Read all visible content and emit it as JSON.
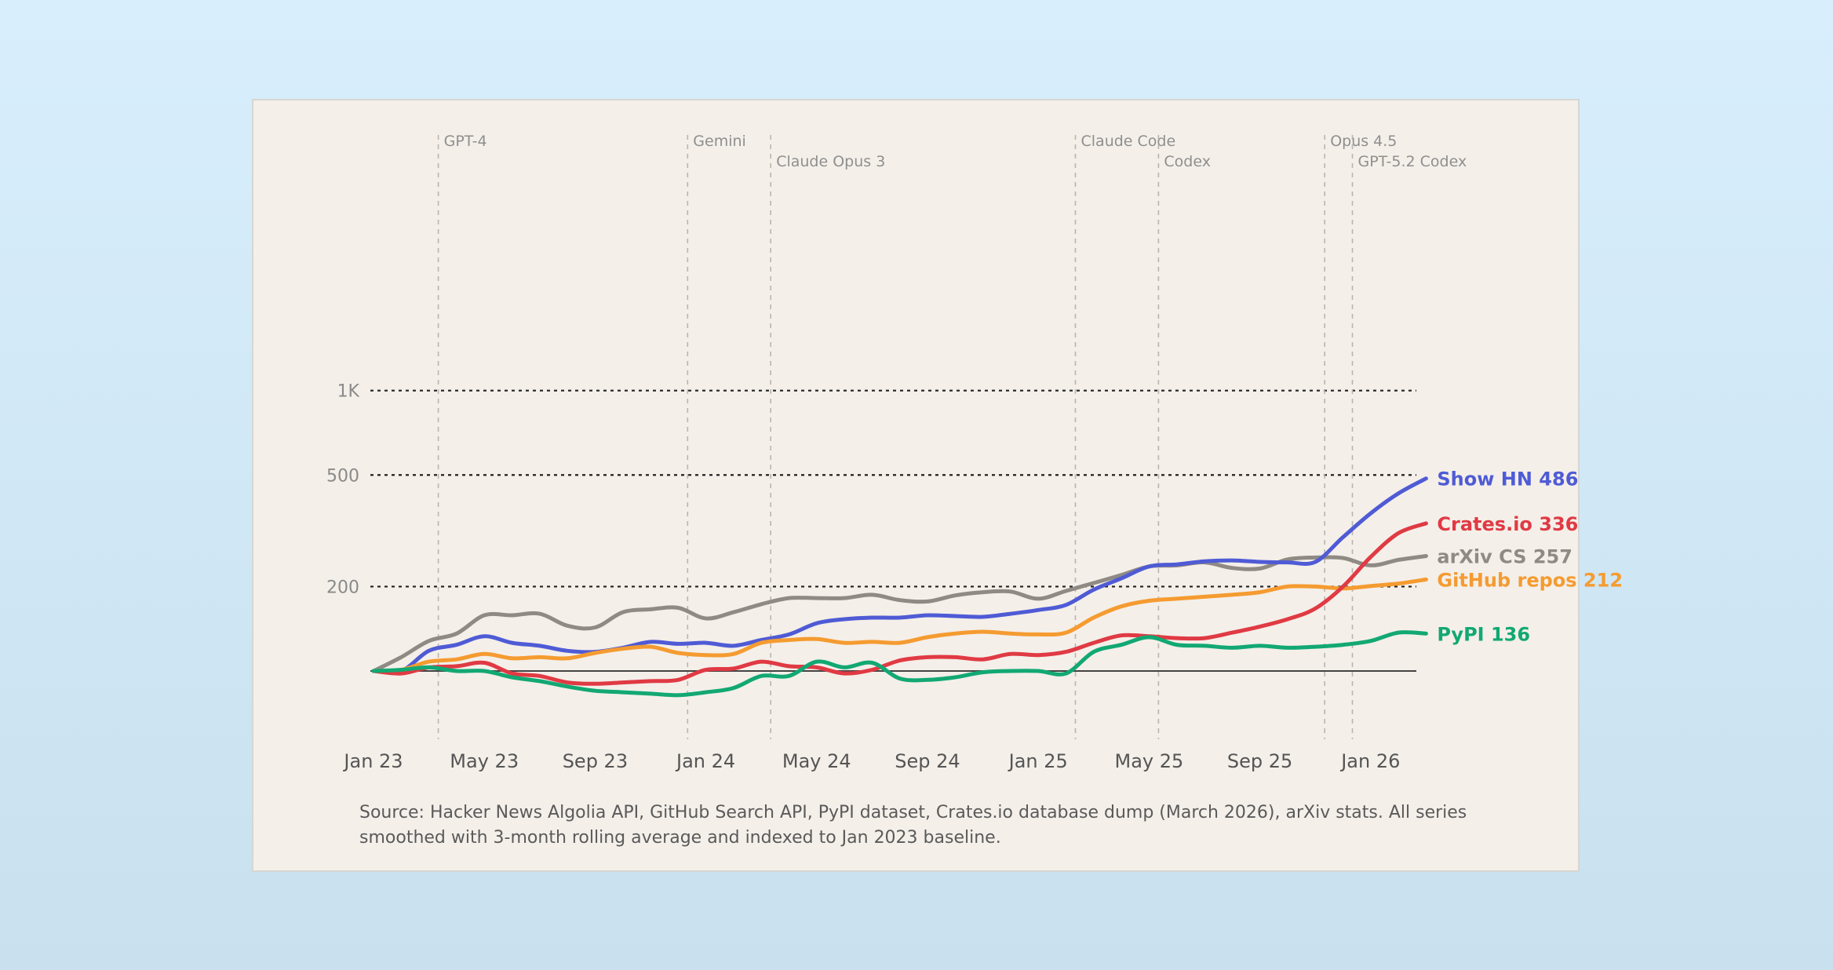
{
  "chart_data": {
    "type": "line",
    "title": "",
    "xlabel": "",
    "ylabel": "",
    "y_ticks": [
      "1K",
      "500",
      "200"
    ],
    "x_ticks": [
      "Jan 23",
      "May 23",
      "Sep 23",
      "Jan 24",
      "May 24",
      "Sep 24",
      "Jan 25",
      "May 25",
      "Sep 25",
      "Jan 26"
    ],
    "x_range": [
      "2023-01",
      "2026-04"
    ],
    "baseline": 100,
    "events": [
      {
        "label": "GPT-4",
        "date": "2023-03"
      },
      {
        "label": "Gemini",
        "date": "2023-12"
      },
      {
        "label": "Claude Opus 3",
        "date": "2024-03"
      },
      {
        "label": "Claude Code",
        "date": "2025-02"
      },
      {
        "label": "Codex",
        "date": "2025-05"
      },
      {
        "label": "Opus 4.5",
        "date": "2025-11"
      },
      {
        "label": "GPT-5.2 Codex",
        "date": "2025-12"
      }
    ],
    "series": [
      {
        "name": "arXiv CS",
        "end_label": "arXiv CS 257",
        "color": "#8f8a84",
        "values": [
          100,
          112,
          128,
          136,
          158,
          158,
          160,
          145,
          143,
          162,
          166,
          168,
          154,
          162,
          173,
          182,
          182,
          182,
          187,
          179,
          177,
          186,
          191,
          192,
          181,
          193,
          206,
          220,
          236,
          238,
          244,
          233,
          232,
          250,
          254,
          253,
          238,
          249,
          257
        ]
      },
      {
        "name": "Show HN",
        "end_label": "Show HN 486",
        "color": "#4f5bd5",
        "values": [
          100,
          100,
          118,
          124,
          133,
          126,
          123,
          118,
          117,
          121,
          127,
          125,
          126,
          123,
          129,
          135,
          148,
          153,
          155,
          155,
          158,
          157,
          156,
          160,
          165,
          172,
          195,
          214,
          236,
          240,
          246,
          248,
          245,
          244,
          245,
          300,
          365,
          430,
          486
        ]
      },
      {
        "name": "GitHub repos",
        "end_label": "GitHub repos 212",
        "color": "#f59b30",
        "values": [
          100,
          101,
          108,
          110,
          115,
          111,
          112,
          111,
          116,
          120,
          122,
          116,
          114,
          115,
          126,
          129,
          130,
          126,
          127,
          126,
          132,
          136,
          138,
          136,
          135,
          137,
          155,
          170,
          178,
          181,
          184,
          187,
          191,
          200,
          200,
          197,
          201,
          205,
          212
        ]
      },
      {
        "name": "Crates.io",
        "end_label": "Crates.io 336",
        "color": "#e03a44",
        "values": [
          100,
          98,
          103,
          104,
          107,
          98,
          96,
          91,
          90,
          91,
          92,
          93,
          101,
          102,
          108,
          104,
          103,
          98,
          101,
          109,
          112,
          112,
          110,
          115,
          114,
          117,
          126,
          134,
          133,
          131,
          131,
          137,
          144,
          153,
          167,
          200,
          255,
          310,
          336
        ]
      },
      {
        "name": "PyPI",
        "end_label": "PyPI 136",
        "color": "#12a873",
        "values": [
          100,
          101,
          103,
          100,
          100,
          95,
          92,
          88,
          85,
          84,
          83,
          82,
          84,
          87,
          96,
          96,
          108,
          103,
          107,
          94,
          93,
          95,
          99,
          100,
          100,
          98,
          117,
          124,
          132,
          124,
          123,
          121,
          123,
          121,
          122,
          124,
          128,
          137,
          136
        ]
      }
    ],
    "source": "Source: Hacker News Algolia API, GitHub Search API, PyPI dataset, Crates.io database dump (March 2026), arXiv stats. All series smoothed with 3-month rolling average and indexed to Jan 2023 baseline."
  }
}
